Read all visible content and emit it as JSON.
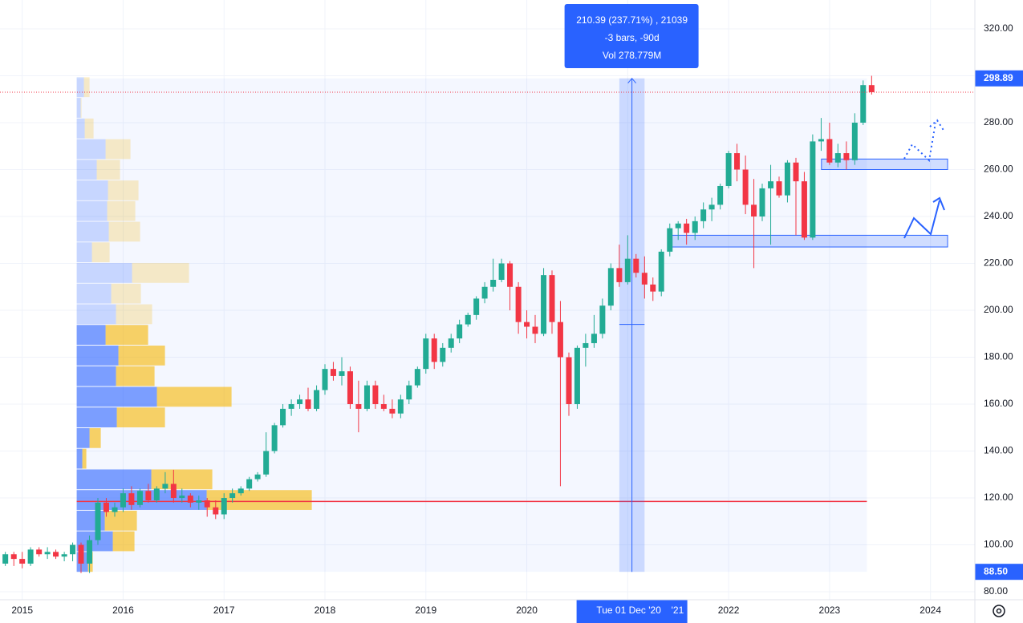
{
  "chart_data": {
    "type": "candlestick",
    "xlim": [
      2014.78,
      2024.44
    ],
    "ylim": [
      76.6,
      332.3
    ],
    "xticks": [
      2015,
      2016,
      2017,
      2018,
      2019,
      2020,
      {
        "value": 2021,
        "label": "'21"
      },
      2022,
      2023,
      2024
    ],
    "yticks": [
      {
        "value": 80,
        "label": "80.00"
      },
      {
        "value": 100,
        "label": "100.00"
      },
      {
        "value": 120,
        "label": "120.00"
      },
      {
        "value": 140,
        "label": "140.00"
      },
      {
        "value": 160,
        "label": "160.00"
      },
      {
        "value": 180,
        "label": "180.00"
      },
      {
        "value": 200,
        "label": "200.00"
      },
      {
        "value": 220,
        "label": "220.00"
      },
      {
        "value": 240,
        "label": "240.00"
      },
      {
        "value": 260,
        "label": "260.00"
      },
      {
        "value": 280,
        "label": "280.00"
      },
      {
        "value": 300,
        "label": "300.00"
      },
      {
        "value": 320,
        "label": "320.00"
      }
    ],
    "grid": true,
    "up_color": "#22ab94",
    "down_color": "#f23645",
    "x": [
      2014.833,
      2014.917,
      2015,
      2015.083,
      2015.167,
      2015.25,
      2015.333,
      2015.417,
      2015.5,
      2015.583,
      2015.667,
      2015.75,
      2015.833,
      2015.917,
      2016,
      2016.083,
      2016.167,
      2016.25,
      2016.333,
      2016.417,
      2016.5,
      2016.583,
      2016.667,
      2016.75,
      2016.833,
      2016.917,
      2017,
      2017.083,
      2017.167,
      2017.25,
      2017.333,
      2017.417,
      2017.5,
      2017.583,
      2017.667,
      2017.75,
      2017.833,
      2017.917,
      2018,
      2018.083,
      2018.167,
      2018.25,
      2018.333,
      2018.417,
      2018.5,
      2018.583,
      2018.667,
      2018.75,
      2018.833,
      2018.917,
      2019,
      2019.083,
      2019.167,
      2019.25,
      2019.333,
      2019.417,
      2019.5,
      2019.583,
      2019.667,
      2019.75,
      2019.833,
      2019.917,
      2020,
      2020.083,
      2020.167,
      2020.25,
      2020.333,
      2020.417,
      2020.5,
      2020.583,
      2020.667,
      2020.75,
      2020.833,
      2020.917,
      2021,
      2021.083,
      2021.167,
      2021.25,
      2021.333,
      2021.417,
      2021.5,
      2021.583,
      2021.667,
      2021.75,
      2021.833,
      2021.917,
      2022,
      2022.083,
      2022.167,
      2022.25,
      2022.333,
      2022.417,
      2022.5,
      2022.583,
      2022.667,
      2022.75,
      2022.833,
      2022.917,
      2023,
      2023.083,
      2023.167,
      2023.25,
      2023.333,
      2023.417
    ],
    "open": [
      92,
      96,
      94,
      92,
      98,
      96,
      97,
      95,
      96,
      100,
      92,
      102,
      118,
      114,
      116,
      122,
      117,
      123,
      119,
      124,
      126,
      120,
      121,
      118,
      119,
      116,
      113,
      120,
      122,
      124,
      128,
      130,
      140,
      151,
      158,
      160,
      162,
      158,
      166,
      175,
      172,
      174,
      160,
      158,
      168,
      160,
      158,
      156,
      162,
      168,
      175,
      188,
      178,
      184,
      188,
      194,
      198,
      205,
      210,
      213,
      220,
      210,
      195,
      193,
      190,
      215,
      195,
      180,
      160,
      184,
      186,
      190,
      202,
      218,
      212,
      222,
      216,
      211,
      208,
      225,
      235,
      237,
      233,
      238,
      243,
      245,
      253,
      267,
      260,
      245,
      240,
      252,
      255,
      249,
      263,
      255,
      231,
      272,
      273,
      263,
      267,
      264,
      280,
      296
    ],
    "high": [
      97,
      97,
      97,
      99,
      99,
      99,
      98,
      97,
      101,
      101,
      104,
      120,
      120,
      118,
      124,
      125,
      124,
      126,
      125,
      131,
      132,
      124,
      122,
      121,
      120,
      119,
      122,
      124,
      125,
      129,
      131,
      148,
      152,
      160,
      162,
      164,
      167,
      168,
      177,
      178,
      180,
      176,
      170,
      170,
      170,
      164,
      162,
      164,
      170,
      176,
      190,
      190,
      186,
      190,
      196,
      199,
      206,
      212,
      222,
      222,
      221,
      212,
      200,
      198,
      218,
      217,
      204,
      182,
      185,
      190,
      198,
      205,
      220,
      228,
      232,
      224,
      223,
      214,
      226,
      237,
      238,
      239,
      240,
      246,
      248,
      254,
      268,
      271,
      266,
      256,
      254,
      262,
      257,
      264,
      265,
      259,
      275,
      282,
      280,
      271,
      272,
      284,
      298,
      300
    ],
    "low": [
      91,
      91,
      90,
      91,
      95,
      94,
      94,
      93,
      93,
      88,
      88,
      100,
      112,
      112,
      114,
      115,
      116,
      118,
      118,
      122,
      118,
      118,
      116,
      115,
      112,
      111,
      111,
      118,
      121,
      123,
      127,
      129,
      139,
      150,
      155,
      158,
      157,
      157,
      164,
      170,
      168,
      158,
      148,
      157,
      158,
      157,
      154,
      154,
      160,
      167,
      173,
      175,
      176,
      182,
      186,
      193,
      196,
      203,
      208,
      212,
      200,
      190,
      188,
      186,
      189,
      190,
      125,
      155,
      158,
      176,
      184,
      188,
      200,
      210,
      211,
      214,
      205,
      204,
      206,
      223,
      230,
      228,
      230,
      235,
      238,
      243,
      252,
      255,
      241,
      218,
      238,
      228,
      248,
      246,
      232,
      230,
      230,
      268,
      262,
      261,
      260,
      262,
      279,
      292
    ],
    "close": [
      96,
      94,
      92,
      98,
      96,
      97,
      95,
      96,
      100,
      92,
      102,
      118,
      114,
      116,
      122,
      117,
      123,
      119,
      124,
      126,
      120,
      121,
      118,
      119,
      116,
      113,
      120,
      122,
      124,
      128,
      130,
      140,
      151,
      158,
      160,
      162,
      158,
      166,
      175,
      172,
      174,
      160,
      158,
      168,
      160,
      158,
      156,
      162,
      168,
      175,
      188,
      178,
      184,
      188,
      194,
      198,
      205,
      210,
      213,
      220,
      210,
      195,
      193,
      190,
      215,
      195,
      180,
      160,
      184,
      186,
      190,
      202,
      218,
      212,
      222,
      216,
      211,
      208,
      225,
      235,
      237,
      233,
      238,
      243,
      245,
      253,
      267,
      260,
      245,
      240,
      252,
      255,
      249,
      263,
      255,
      231,
      272,
      273,
      263,
      267,
      264,
      280,
      296,
      293
    ],
    "profile": {
      "bins": [
        88.5,
        97.3,
        106.1,
        114.9,
        123.7,
        132.5,
        141.3,
        150.1,
        158.9,
        167.7,
        176.5,
        185.3,
        194.1,
        202.9,
        211.7,
        220.5,
        229.3,
        238.1,
        246.9,
        255.7,
        264.5,
        273.3,
        282.1,
        290.9,
        299.7
      ],
      "up": [
        14,
        45,
        35,
        162,
        93,
        7,
        16,
        50,
        100,
        49,
        52,
        36,
        49,
        43,
        69,
        19,
        40,
        38,
        39,
        25,
        36,
        10,
        5,
        9
      ],
      "down": [
        6,
        27,
        40,
        131,
        76,
        5,
        14,
        60,
        93,
        48,
        58,
        53,
        45,
        37,
        71,
        22,
        39,
        35,
        38,
        29,
        31,
        11,
        1,
        7
      ],
      "poc": 118.5
    },
    "shade_x": [
      2015.54,
      2023.37
    ],
    "measure": {
      "x": [
        2020.917,
        2021.167
      ],
      "prices": [
        {
          "value": 88.5,
          "label": "88.50"
        },
        298.89
      ],
      "crosshair_price": 194,
      "date_label": "Tue 01 Dec '20",
      "lines": [
        "210.39 (237.71%) , 21039",
        "-3 bars, -90d",
        "Vol 278.779M"
      ]
    },
    "zones": [
      {
        "x": [
          2022.92,
          2024.17
        ],
        "y": [
          260,
          264.5
        ]
      },
      {
        "x": [
          2021.42,
          2024.17
        ],
        "y": [
          227,
          232
        ]
      }
    ]
  }
}
